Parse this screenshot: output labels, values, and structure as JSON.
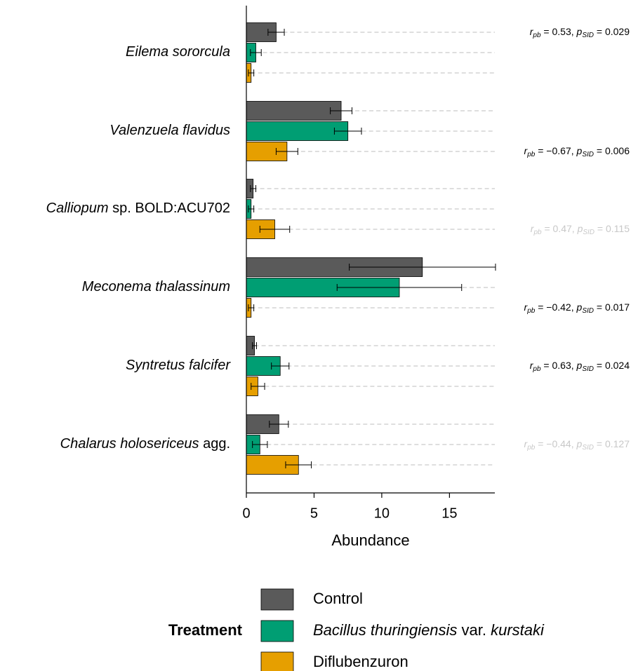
{
  "chart_data": {
    "type": "bar",
    "orientation": "horizontal",
    "xlabel": "Abundance",
    "xlim": [
      0,
      18.35
    ],
    "xticks": [
      0,
      5,
      10,
      15
    ],
    "categories": [
      [
        {
          "text": "Eilema sororcula",
          "italic": true
        }
      ],
      [
        {
          "text": "Valenzuela flavidus",
          "italic": true
        }
      ],
      [
        {
          "text": "Calliopum",
          "italic": true
        },
        {
          "text": " sp. BOLD:ACU702",
          "italic": false
        }
      ],
      [
        {
          "text": "Meconema thalassinum",
          "italic": true
        }
      ],
      [
        {
          "text": "Syntretus falcifer",
          "italic": true
        }
      ],
      [
        {
          "text": "Chalarus holosericeus",
          "italic": true
        },
        {
          "text": " agg.",
          "italic": false
        }
      ]
    ],
    "series": [
      {
        "name": [
          {
            "text": "Control",
            "italic": false
          }
        ],
        "color": "#5a5a5a",
        "values": [
          2.2,
          7.0,
          0.5,
          13.0,
          0.6,
          2.4
        ],
        "errors": [
          0.6,
          0.8,
          0.2,
          5.4,
          0.15,
          0.7
        ]
      },
      {
        "name": [
          {
            "text": "Bacillus thuringiensis",
            "italic": true
          },
          {
            "text": " var. ",
            "italic": false
          },
          {
            "text": "kurstaki",
            "italic": true
          }
        ],
        "color": "#009e73",
        "values": [
          0.7,
          7.5,
          0.35,
          11.3,
          2.5,
          1.0
        ],
        "errors": [
          0.4,
          1.0,
          0.2,
          4.6,
          0.65,
          0.55
        ]
      },
      {
        "name": [
          {
            "text": "Diflubenzuron",
            "italic": false
          }
        ],
        "color": "#e69f00",
        "values": [
          0.35,
          3.0,
          2.1,
          0.35,
          0.85,
          3.85
        ],
        "errors": [
          0.2,
          0.8,
          1.1,
          0.2,
          0.5,
          0.95
        ]
      }
    ],
    "legend_title": "Treatment",
    "annotation_format": {
      "r": "r",
      "r_sub": "pb",
      "p": "p",
      "p_sub": "SID",
      "eq": " = ",
      "sep": ", "
    },
    "annotations": [
      {
        "r": "0.53",
        "p": "0.029",
        "color": "#000000"
      },
      {
        "r": "−0.67",
        "p": "0.006",
        "color": "#000000"
      },
      {
        "r": "0.47",
        "p": "0.115",
        "color": "#c8c8c8"
      },
      {
        "r": "−0.42",
        "p": "0.017",
        "color": "#000000"
      },
      {
        "r": "0.63",
        "p": "0.024",
        "color": "#000000"
      },
      {
        "r": "−0.44",
        "p": "0.127",
        "color": "#c8c8c8"
      }
    ]
  }
}
